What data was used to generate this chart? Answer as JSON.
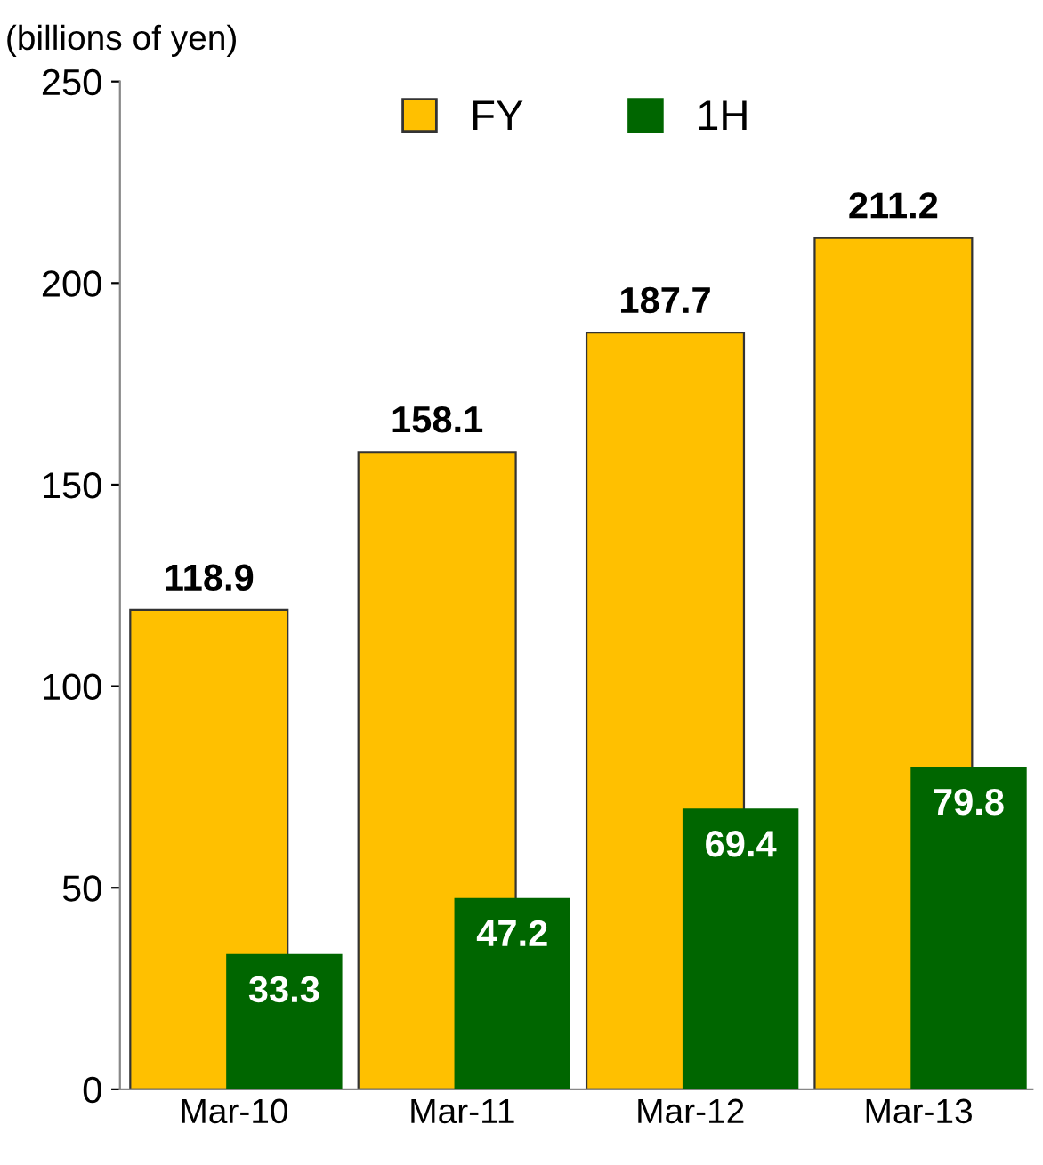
{
  "chart_data": {
    "type": "bar",
    "ylabel": "(billions of yen)",
    "categories": [
      "Mar-10",
      "Mar-11",
      "Mar-12",
      "Mar-13"
    ],
    "series": [
      {
        "name": "FY",
        "color": "#ffc000",
        "values": [
          118.9,
          158.1,
          187.7,
          211.2
        ]
      },
      {
        "name": "1H",
        "color": "#006600",
        "values": [
          33.3,
          47.2,
          69.4,
          79.8
        ]
      }
    ],
    "ylim": [
      0,
      250
    ],
    "yticks": [
      0,
      50,
      100,
      150,
      200,
      250
    ],
    "grid": false,
    "legend": "top",
    "data_labels": true
  }
}
